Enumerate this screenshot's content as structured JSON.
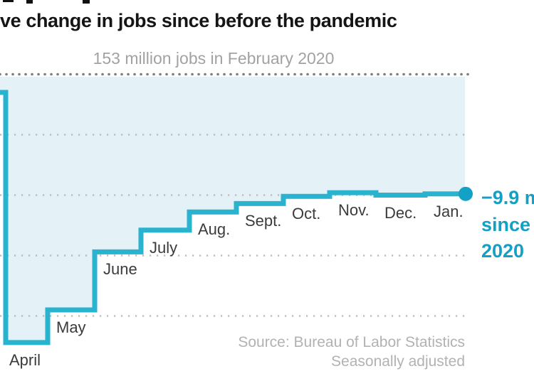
{
  "header": {
    "title_visible": "ve change in jobs since before the pandemic"
  },
  "annotation": {
    "line1": "−9.9 m",
    "line2": "since",
    "line3": "2020"
  },
  "source": {
    "line1": "Source: Bureau of Labor Statistics",
    "line2": "Seasonally adjusted"
  },
  "colors": {
    "step_line": "#29b3ce",
    "end_dot": "#13a2c5",
    "annotation_text": "#149fc4",
    "area_fill": "#e4f2f8",
    "baseline_dots": "#7f7f7f",
    "gridline_dots": "#bdbdbd",
    "title_text": "#151515",
    "subtitle_text": "#a2a2a2",
    "month_label_text": "#3b3b3b",
    "source_text": "#b2b2b2"
  },
  "chart_data": {
    "type": "area",
    "subtype": "step-area (cumulative job change, millions)",
    "title": "ve change in jobs since before the pandemic",
    "baseline_label": "153 million jobs in February 2020",
    "baseline_value": 0,
    "categories": [
      "April",
      "May",
      "June",
      "July",
      "Aug.",
      "Sept.",
      "Oct.",
      "Nov.",
      "Dec.",
      "Jan."
    ],
    "values": [
      -22.2,
      -19.5,
      -14.7,
      -12.9,
      -11.4,
      -10.7,
      -10.1,
      -9.8,
      -10.0,
      -9.9
    ],
    "left_edge_value": -1.5,
    "gridline_values": [
      -5,
      -10,
      -15,
      -20
    ],
    "ylim": [
      -25,
      0
    ],
    "grid": "dotted horizontal",
    "legend": "none",
    "end_point": {
      "month": "Jan.",
      "value": -9.9,
      "label": "−9.9 m since 2020 (clipped at right edge)"
    }
  }
}
